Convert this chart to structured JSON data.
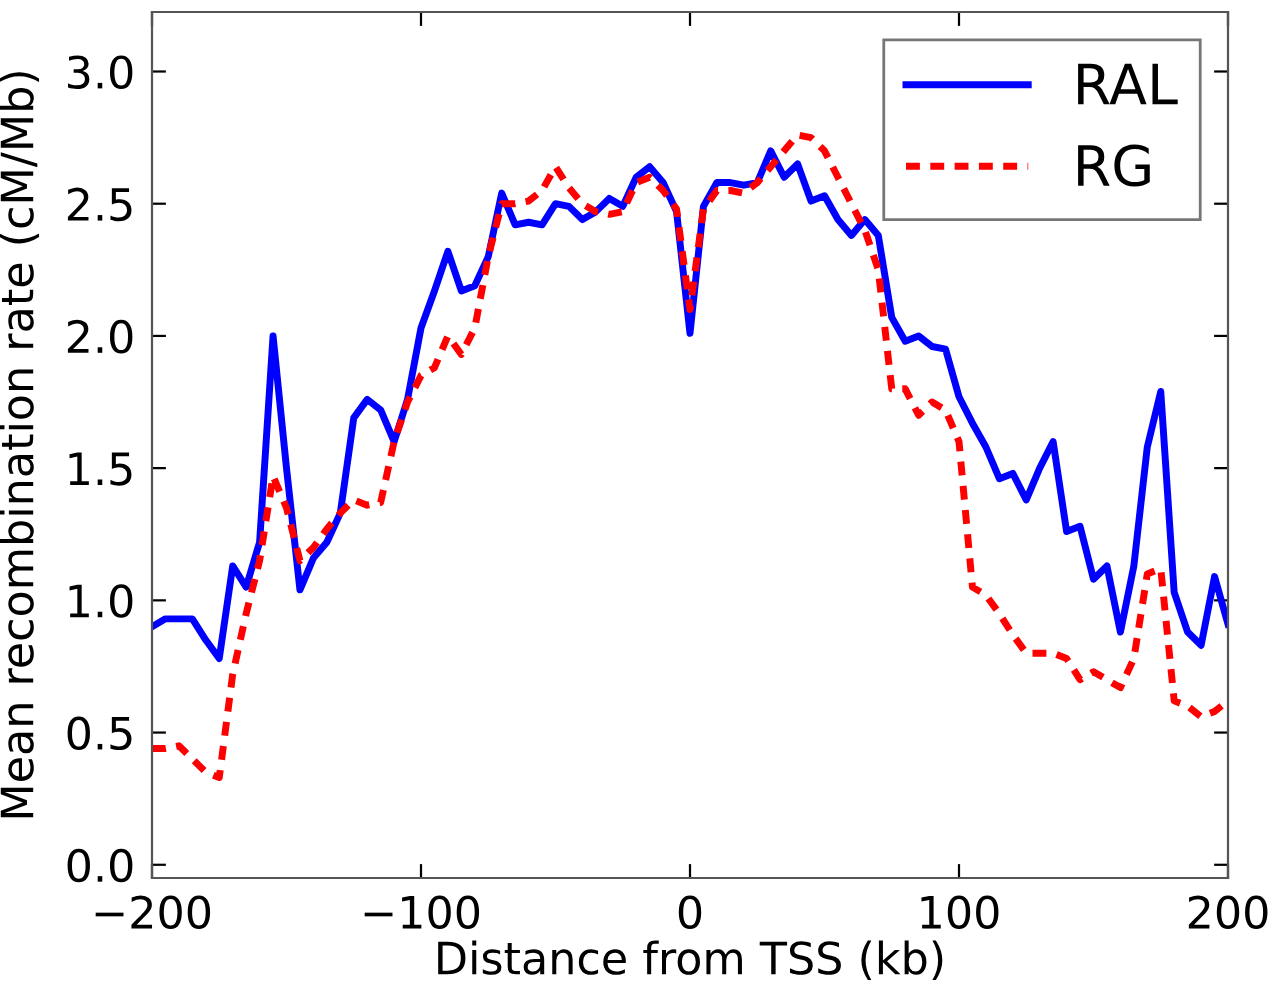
{
  "chart_data": {
    "type": "line",
    "xlabel": "Distance from TSS (kb)",
    "ylabel": "Mean recombination rate (cM/Mb)",
    "x": [
      -200,
      -195,
      -190,
      -185,
      -180,
      -175,
      -170,
      -165,
      -160,
      -155,
      -150,
      -145,
      -140,
      -135,
      -130,
      -125,
      -120,
      -115,
      -110,
      -105,
      -100,
      -95,
      -90,
      -85,
      -80,
      -75,
      -70,
      -65,
      -60,
      -55,
      -50,
      -45,
      -40,
      -35,
      -30,
      -25,
      -20,
      -15,
      -10,
      -5,
      0,
      5,
      10,
      15,
      20,
      25,
      30,
      35,
      40,
      45,
      50,
      55,
      60,
      65,
      70,
      75,
      80,
      85,
      90,
      95,
      100,
      105,
      110,
      115,
      120,
      125,
      130,
      135,
      140,
      145,
      150,
      155,
      160,
      165,
      170,
      175,
      180,
      185,
      190,
      195,
      200
    ],
    "series": [
      {
        "name": "RAL",
        "color": "#0000ff",
        "line_style": "solid",
        "values": [
          0.9,
          0.93,
          0.93,
          0.93,
          0.85,
          0.78,
          1.13,
          1.05,
          1.22,
          2.0,
          1.5,
          1.04,
          1.16,
          1.22,
          1.33,
          1.69,
          1.76,
          1.72,
          1.6,
          1.76,
          2.03,
          2.17,
          2.32,
          2.17,
          2.19,
          2.3,
          2.54,
          2.42,
          2.43,
          2.42,
          2.5,
          2.49,
          2.44,
          2.47,
          2.52,
          2.49,
          2.6,
          2.64,
          2.58,
          2.47,
          2.01,
          2.49,
          2.58,
          2.58,
          2.57,
          2.58,
          2.7,
          2.6,
          2.65,
          2.51,
          2.53,
          2.44,
          2.38,
          2.44,
          2.38,
          2.07,
          1.98,
          2.0,
          1.96,
          1.95,
          1.77,
          1.67,
          1.58,
          1.46,
          1.48,
          1.38,
          1.5,
          1.6,
          1.26,
          1.28,
          1.08,
          1.13,
          0.88,
          1.13,
          1.58,
          1.79,
          1.03,
          0.88,
          0.83,
          1.09,
          0.91
        ]
      },
      {
        "name": "RG",
        "color": "#ff0000",
        "line_style": "dashed",
        "values": [
          0.44,
          0.44,
          0.45,
          0.4,
          0.35,
          0.33,
          0.72,
          0.95,
          1.15,
          1.47,
          1.35,
          1.15,
          1.2,
          1.27,
          1.33,
          1.38,
          1.36,
          1.37,
          1.6,
          1.75,
          1.85,
          1.88,
          2.0,
          1.93,
          2.03,
          2.3,
          2.5,
          2.5,
          2.51,
          2.55,
          2.64,
          2.56,
          2.5,
          2.47,
          2.46,
          2.47,
          2.58,
          2.6,
          2.55,
          2.48,
          2.1,
          2.48,
          2.55,
          2.55,
          2.54,
          2.58,
          2.64,
          2.7,
          2.76,
          2.75,
          2.7,
          2.6,
          2.5,
          2.4,
          2.25,
          1.8,
          1.8,
          1.7,
          1.75,
          1.72,
          1.6,
          1.05,
          1.02,
          0.95,
          0.87,
          0.8,
          0.8,
          0.8,
          0.78,
          0.7,
          0.73,
          0.7,
          0.67,
          0.78,
          1.1,
          1.12,
          0.62,
          0.6,
          0.56,
          0.58,
          0.62
        ]
      }
    ],
    "xlim": [
      -200,
      200
    ],
    "xticks": [
      {
        "value": -200,
        "label": "−200"
      },
      {
        "value": -100,
        "label": "−100"
      },
      0,
      100,
      200
    ],
    "ylim": [
      -0.05,
      3.225
    ],
    "yticks": [
      {
        "value": 0,
        "label": "0.0"
      },
      {
        "value": 0.5,
        "label": "0.5"
      },
      {
        "value": 1,
        "label": "1.0"
      },
      {
        "value": 1.5,
        "label": "1.5"
      },
      {
        "value": 2,
        "label": "2.0"
      },
      {
        "value": 2.5,
        "label": "2.5"
      },
      {
        "value": 3,
        "label": "3.0"
      }
    ],
    "grid": false,
    "legend": "top right"
  }
}
